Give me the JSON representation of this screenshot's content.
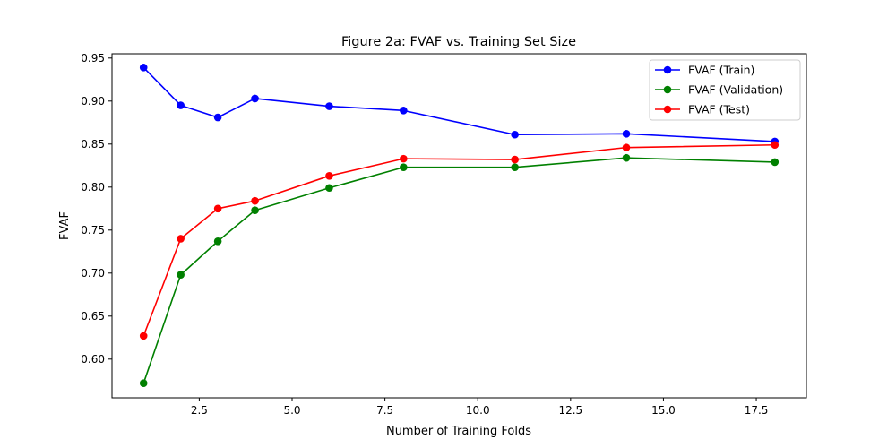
{
  "chart_data": {
    "type": "line",
    "title": "Figure 2a: FVAF vs. Training Set Size",
    "xlabel": "Number of Training Folds",
    "ylabel": "FVAF",
    "xlim": [
      0.15,
      18.85
    ],
    "ylim": [
      0.555,
      0.955
    ],
    "x_ticks": [
      2.5,
      5.0,
      7.5,
      10.0,
      12.5,
      15.0,
      17.5
    ],
    "x_tick_labels": [
      "2.5",
      "5.0",
      "7.5",
      "10.0",
      "12.5",
      "15.0",
      "17.5"
    ],
    "y_ticks": [
      0.6,
      0.65,
      0.7,
      0.75,
      0.8,
      0.85,
      0.9,
      0.95
    ],
    "y_tick_labels": [
      "0.60",
      "0.65",
      "0.70",
      "0.75",
      "0.80",
      "0.85",
      "0.90",
      "0.95"
    ],
    "grid": false,
    "legend_position": "top-right",
    "x": [
      1,
      2,
      3,
      4,
      6,
      8,
      11,
      14,
      18
    ],
    "series": [
      {
        "name": "FVAF (Train)",
        "color": "#0000ff",
        "marker": "circle",
        "values": [
          0.939,
          0.895,
          0.881,
          0.903,
          0.894,
          0.889,
          0.861,
          0.862,
          0.853
        ]
      },
      {
        "name": "FVAF (Validation)",
        "color": "#008000",
        "marker": "circle",
        "values": [
          0.572,
          0.698,
          0.737,
          0.773,
          0.799,
          0.823,
          0.823,
          0.834,
          0.829
        ]
      },
      {
        "name": "FVAF (Test)",
        "color": "#ff0000",
        "marker": "circle",
        "values": [
          0.627,
          0.74,
          0.775,
          0.784,
          0.813,
          0.833,
          0.832,
          0.846,
          0.849
        ]
      }
    ]
  }
}
